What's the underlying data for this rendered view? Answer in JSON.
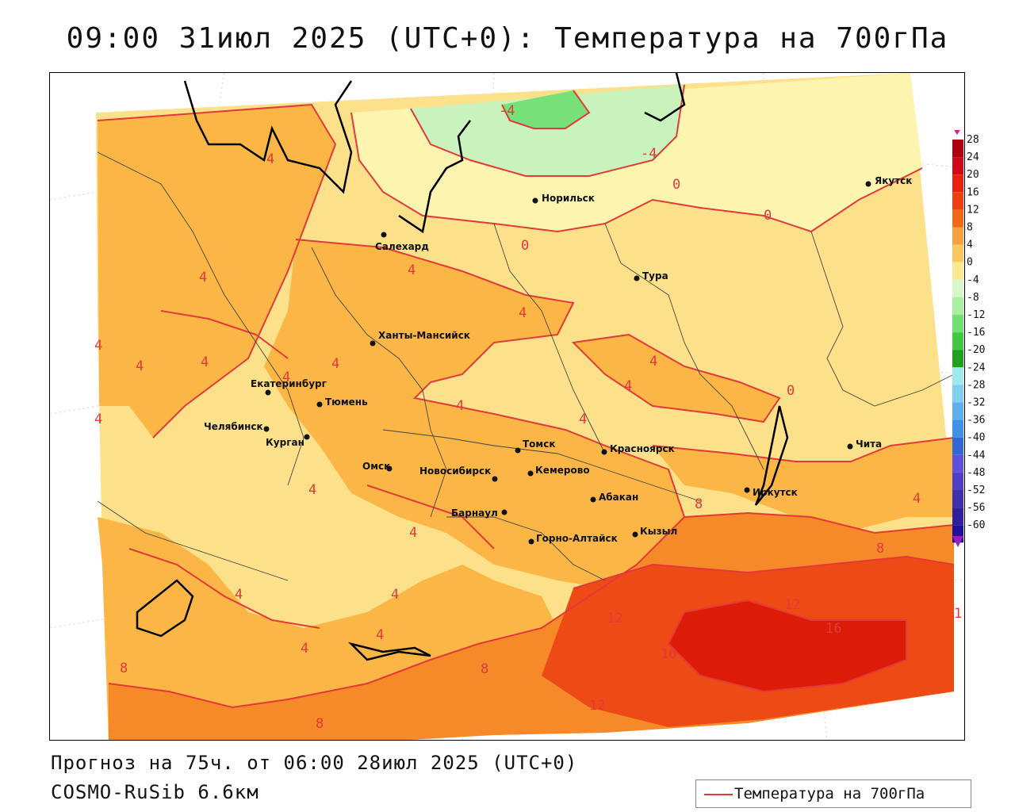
{
  "title": "09:00 31июл 2025 (UTC+0): Температура на 700гПа",
  "footer": {
    "forecast": "Прогноз на 75ч. от 06:00 28июл 2025 (UTC+0)",
    "model": "COSMO-RuSib 6.6км"
  },
  "legend": {
    "label": "Температура на 700гПа",
    "line_color": "#e23a3a"
  },
  "colorbar": {
    "labels": [
      "28",
      "24",
      "20",
      "16",
      "12",
      "8",
      "4",
      "0",
      "-4",
      "-8",
      "-12",
      "-16",
      "-20",
      "-24",
      "-28",
      "-32",
      "-36",
      "-40",
      "-44",
      "-48",
      "-52",
      "-56",
      "-60"
    ],
    "colors": [
      "#b00010",
      "#d00818",
      "#e82010",
      "#f04010",
      "#f06818",
      "#f8a040",
      "#fcc860",
      "#fde890",
      "#d8f8c8",
      "#a8f0a0",
      "#70e070",
      "#40c840",
      "#20a020",
      "#a0e8f0",
      "#80d0f0",
      "#60b0f0",
      "#4090e8",
      "#3068d8",
      "#6050e0",
      "#5040c8",
      "#4030b0",
      "#3020a0",
      "#2010a0"
    ]
  },
  "colors": {
    "band_0_4": "#fde08a",
    "band_4_8": "#fbb646",
    "band_8_12": "#f68a28",
    "band_12_16": "#ee4a16",
    "band_16_20": "#dc1c08",
    "band_m4_0": "#fdf4b0",
    "band_m8_m4": "#c9f2bc",
    "band_m12_m8": "#78e078",
    "contour": "#e23a3a",
    "border": "#000000",
    "admin": "#444444"
  },
  "cities": [
    {
      "name": "Якутск"
    },
    {
      "name": "Норильск"
    },
    {
      "name": "Салехард"
    },
    {
      "name": "Тура"
    },
    {
      "name": "Ханты-Мансийск"
    },
    {
      "name": "Екатеринбург"
    },
    {
      "name": "Тюмень"
    },
    {
      "name": "Челябинск"
    },
    {
      "name": "Курган"
    },
    {
      "name": "Омск"
    },
    {
      "name": "Новосибирск"
    },
    {
      "name": "Томск"
    },
    {
      "name": "Кемерово"
    },
    {
      "name": "Красноярск"
    },
    {
      "name": "Абакан"
    },
    {
      "name": "Барнаул"
    },
    {
      "name": "Горно-Алтайск"
    },
    {
      "name": "Кызыл"
    },
    {
      "name": "Иркутск"
    },
    {
      "name": "Чита"
    }
  ],
  "contour_labels": [
    "-4",
    "-4",
    "4",
    "0",
    "0",
    "0",
    "4",
    "4",
    "4",
    "4",
    "4",
    "4",
    "4",
    "4",
    "4",
    "4",
    "4",
    "4",
    "4",
    "0",
    "4",
    "4",
    "4",
    "4",
    "8",
    "8",
    "8",
    "8",
    "12",
    "12",
    "16",
    "16",
    "12",
    "8",
    "4",
    "4",
    "4",
    "1"
  ]
}
